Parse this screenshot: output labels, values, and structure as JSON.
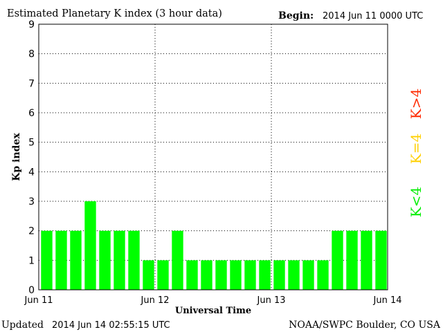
{
  "header": {
    "title": "Estimated Planetary K index (3 hour data)",
    "begin_label": "Begin:",
    "begin_value": "2014 Jun 11 0000 UTC"
  },
  "footer": {
    "updated_label": "Updated",
    "updated_value": "2014 Jun 14 02:55:15 UTC",
    "credit": "NOAA/SWPC Boulder, CO USA"
  },
  "legend": [
    {
      "label": "K>4",
      "color": "#ff2a00"
    },
    {
      "label": "K=4",
      "color": "#ffd000"
    },
    {
      "label": "K<4",
      "color": "#00ee00"
    }
  ],
  "chart_data": {
    "type": "bar",
    "title": "Estimated Planetary K index (3 hour data)",
    "xlabel": "Universal Time",
    "ylabel": "Kp index",
    "ylim": [
      0,
      9
    ],
    "yticks": [
      0,
      1,
      2,
      3,
      4,
      5,
      6,
      7,
      8,
      9
    ],
    "grid": true,
    "x_tick_labels": [
      "Jun 11",
      "Jun 12",
      "Jun 13",
      "Jun 14"
    ],
    "bar_color": "#00ff00",
    "values": [
      2,
      2,
      2,
      3,
      2,
      2,
      2,
      1,
      1,
      2,
      1,
      1,
      1,
      1,
      1,
      1,
      1,
      1,
      1,
      1,
      2,
      2,
      2,
      2
    ]
  }
}
